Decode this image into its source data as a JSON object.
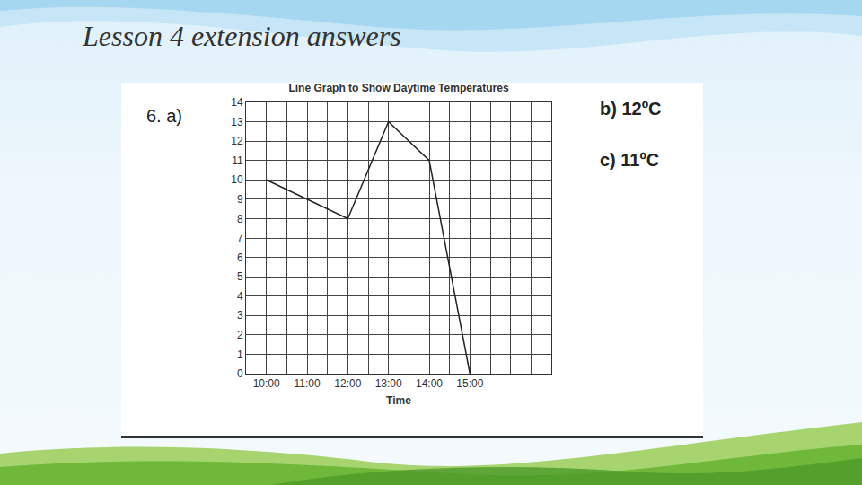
{
  "slide": {
    "title": "Lesson 4 extension answers",
    "question": "6. a)",
    "answers": [
      {
        "label": "b)",
        "text": "12ºC"
      },
      {
        "label": "c)",
        "text": "11ºC"
      }
    ]
  },
  "chart_data": {
    "type": "line",
    "title": "Line Graph to Show Daytime Temperatures",
    "x_label": "Time",
    "x": [
      10,
      12,
      13,
      14,
      15
    ],
    "values": [
      10,
      8,
      13,
      11,
      0
    ],
    "color": "#222222",
    "xlim": [
      9.5,
      17
    ],
    "xticks": [
      {
        "value": 10,
        "label": "10:00"
      },
      {
        "value": 11,
        "label": "11:00"
      },
      {
        "value": 12,
        "label": "12:00"
      },
      {
        "value": 13,
        "label": "13:00"
      },
      {
        "value": 14,
        "label": "14:00"
      },
      {
        "value": 15,
        "label": "15:00"
      }
    ],
    "ylim": [
      0,
      14
    ],
    "yticks": [
      0,
      1,
      2,
      3,
      4,
      5,
      6,
      7,
      8,
      9,
      10,
      11,
      12,
      13,
      14
    ],
    "grid": true
  }
}
